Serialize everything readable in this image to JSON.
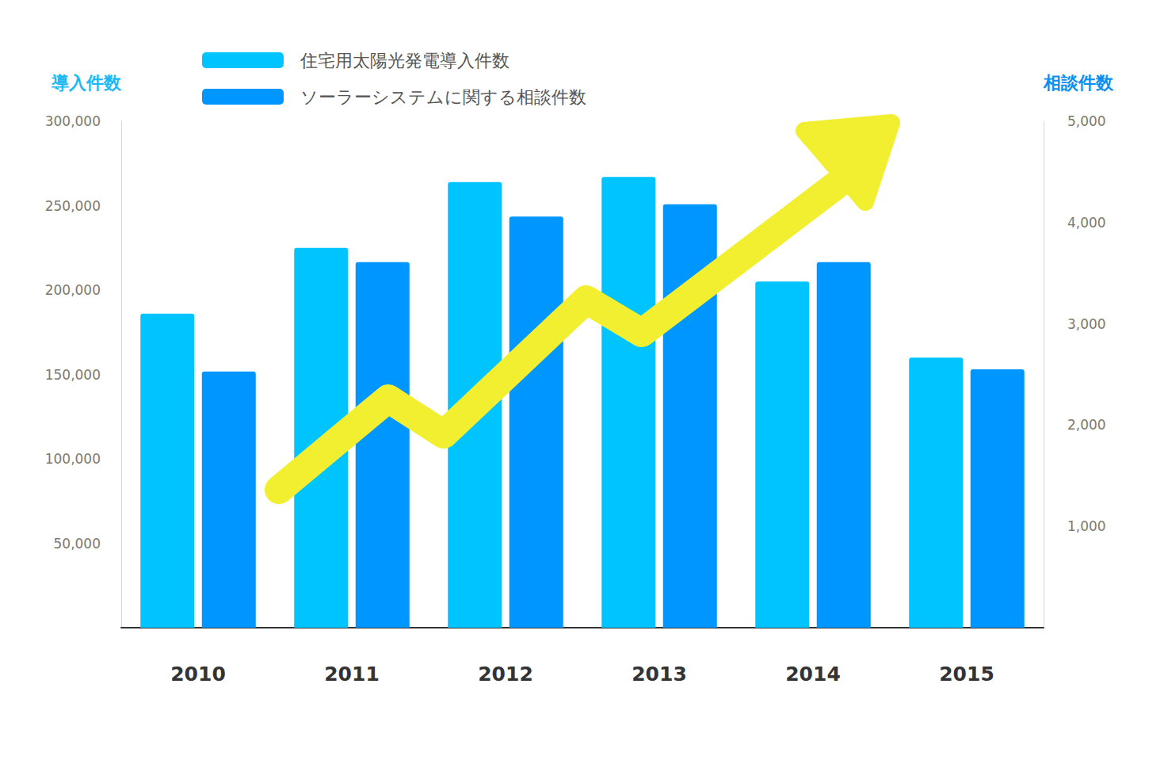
{
  "chart_data": {
    "type": "bar",
    "categories": [
      "2010",
      "2011",
      "2012",
      "2013",
      "2014",
      "2015"
    ],
    "series": [
      {
        "name": "住宅用太陽光発電導入件数",
        "color": "#00c4ff",
        "axis": "y",
        "values": [
          186000,
          225000,
          264000,
          267000,
          205000,
          160000
        ]
      },
      {
        "name": "ソーラーシステムに関する相談件数",
        "color": "#0096ff",
        "axis": "y2",
        "values": [
          2530,
          3610,
          4060,
          4180,
          3610,
          2550
        ]
      }
    ],
    "ylabel": "導入件数",
    "y2label": "相談件数",
    "ylim": [
      0,
      300000
    ],
    "yticks": [
      {
        "value": 50000,
        "label": "50,000"
      },
      {
        "value": 100000,
        "label": "100,000"
      },
      {
        "value": 150000,
        "label": "150,000"
      },
      {
        "value": 200000,
        "label": "200,000"
      },
      {
        "value": 250000,
        "label": "250,000"
      },
      {
        "value": 300000,
        "label": "300,000"
      }
    ],
    "y2lim": [
      0,
      5000
    ],
    "y2ticks": [
      {
        "value": 1000,
        "label": "1,000"
      },
      {
        "value": 2000,
        "label": "2,000"
      },
      {
        "value": 3000,
        "label": "3,000"
      },
      {
        "value": 4000,
        "label": "4,000"
      },
      {
        "value": 5000,
        "label": "5,000"
      }
    ],
    "legend": "top-left",
    "grid": false
  }
}
